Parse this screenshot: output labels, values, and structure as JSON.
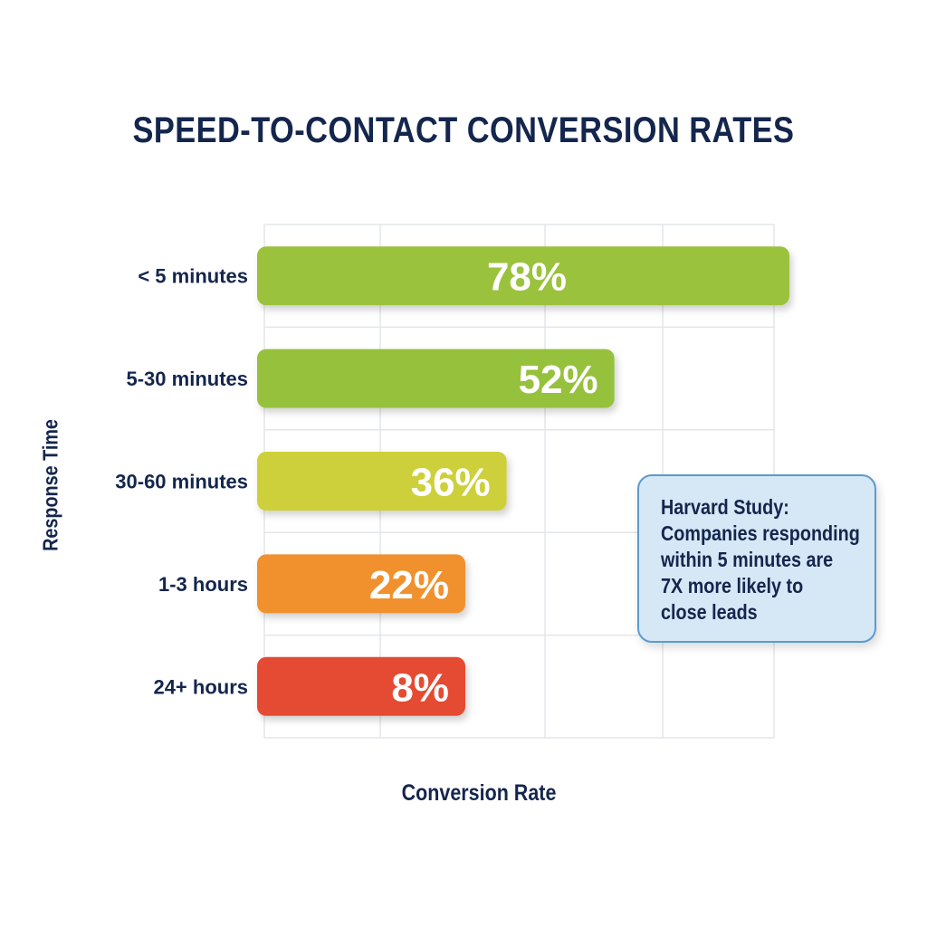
{
  "chart_data": {
    "type": "bar",
    "orientation": "horizontal",
    "title": "SPEED-TO-CONTACT CONVERSION RATES",
    "xlabel": "Conversion Rate",
    "ylabel": "Response Time",
    "categories": [
      "< 5 minutes",
      "5-30 minutes",
      "30-60 minutes",
      "1-3 hours",
      "24+ hours"
    ],
    "values": [
      78,
      52,
      36,
      22,
      8
    ],
    "value_labels": [
      "78%",
      "52%",
      "36%",
      "22%",
      "8%"
    ],
    "colors": [
      "#9bc23e",
      "#96c13c",
      "#cdd03a",
      "#f0912e",
      "#e44b32"
    ],
    "grid": true,
    "annotation": [
      "Harvard Study:",
      "Companies responding",
      "within 5 minutes are",
      "7X more likely to",
      "close leads"
    ]
  }
}
